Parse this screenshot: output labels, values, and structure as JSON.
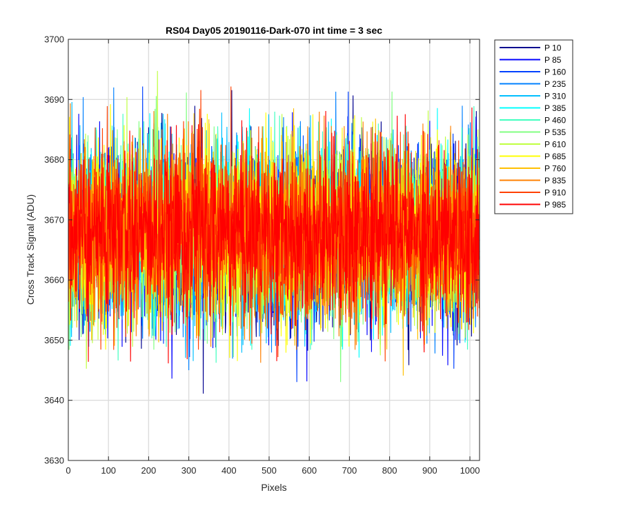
{
  "chart_data": {
    "type": "line",
    "title": "RS04 Day05 20190116-Dark-070 int time = 3 sec",
    "xlabel": "Pixels",
    "ylabel": "Cross Track Signal (ADU)",
    "xlim": [
      0,
      1024
    ],
    "ylim": [
      3630,
      3700
    ],
    "xticks": [
      0,
      100,
      200,
      300,
      400,
      500,
      600,
      700,
      800,
      900,
      1000
    ],
    "yticks": [
      3630,
      3640,
      3650,
      3660,
      3670,
      3680,
      3690,
      3700
    ],
    "xtick_labels": [
      "0",
      "100",
      "200",
      "300",
      "400",
      "500",
      "600",
      "700",
      "800",
      "900",
      "1000"
    ],
    "ytick_labels": [
      "3630",
      "3640",
      "3650",
      "3660",
      "3670",
      "3680",
      "3690",
      "3700"
    ],
    "grid": true,
    "legend_position": "outside-top-right",
    "x": "1 to 1024 (pixel index)",
    "series": [
      {
        "name": "P 10",
        "color": "#00008f",
        "mean": 3667.5,
        "min": 3641,
        "max": 3692
      },
      {
        "name": "P 85",
        "color": "#0000ff",
        "mean": 3667.5,
        "min": 3643,
        "max": 3695
      },
      {
        "name": "P 160",
        "color": "#0040ff",
        "mean": 3667.5,
        "min": 3642,
        "max": 3693
      },
      {
        "name": "P 235",
        "color": "#0080ff",
        "mean": 3667.5,
        "min": 3644,
        "max": 3692
      },
      {
        "name": "P 310",
        "color": "#00bfff",
        "mean": 3667.5,
        "min": 3645,
        "max": 3690
      },
      {
        "name": "P 385",
        "color": "#00ffff",
        "mean": 3667.5,
        "min": 3646,
        "max": 3689
      },
      {
        "name": "P 460",
        "color": "#40ffbf",
        "mean": 3667.5,
        "min": 3646,
        "max": 3690
      },
      {
        "name": "P 535",
        "color": "#80ff80",
        "mean": 3667.5,
        "min": 3643,
        "max": 3692
      },
      {
        "name": "P 610",
        "color": "#bfff40",
        "mean": 3667.5,
        "min": 3645,
        "max": 3698
      },
      {
        "name": "P 685",
        "color": "#ffff00",
        "mean": 3667.5,
        "min": 3637,
        "max": 3695
      },
      {
        "name": "P 760",
        "color": "#ffbf00",
        "mean": 3667.5,
        "min": 3643,
        "max": 3693
      },
      {
        "name": "P 835",
        "color": "#ff8000",
        "mean": 3667.5,
        "min": 3646,
        "max": 3692
      },
      {
        "name": "P 910",
        "color": "#ff4000",
        "mean": 3667.5,
        "min": 3646,
        "max": 3693
      },
      {
        "name": "P 985",
        "color": "#ff0000",
        "mean": 3668.0,
        "min": 3646,
        "max": 3700
      }
    ]
  }
}
